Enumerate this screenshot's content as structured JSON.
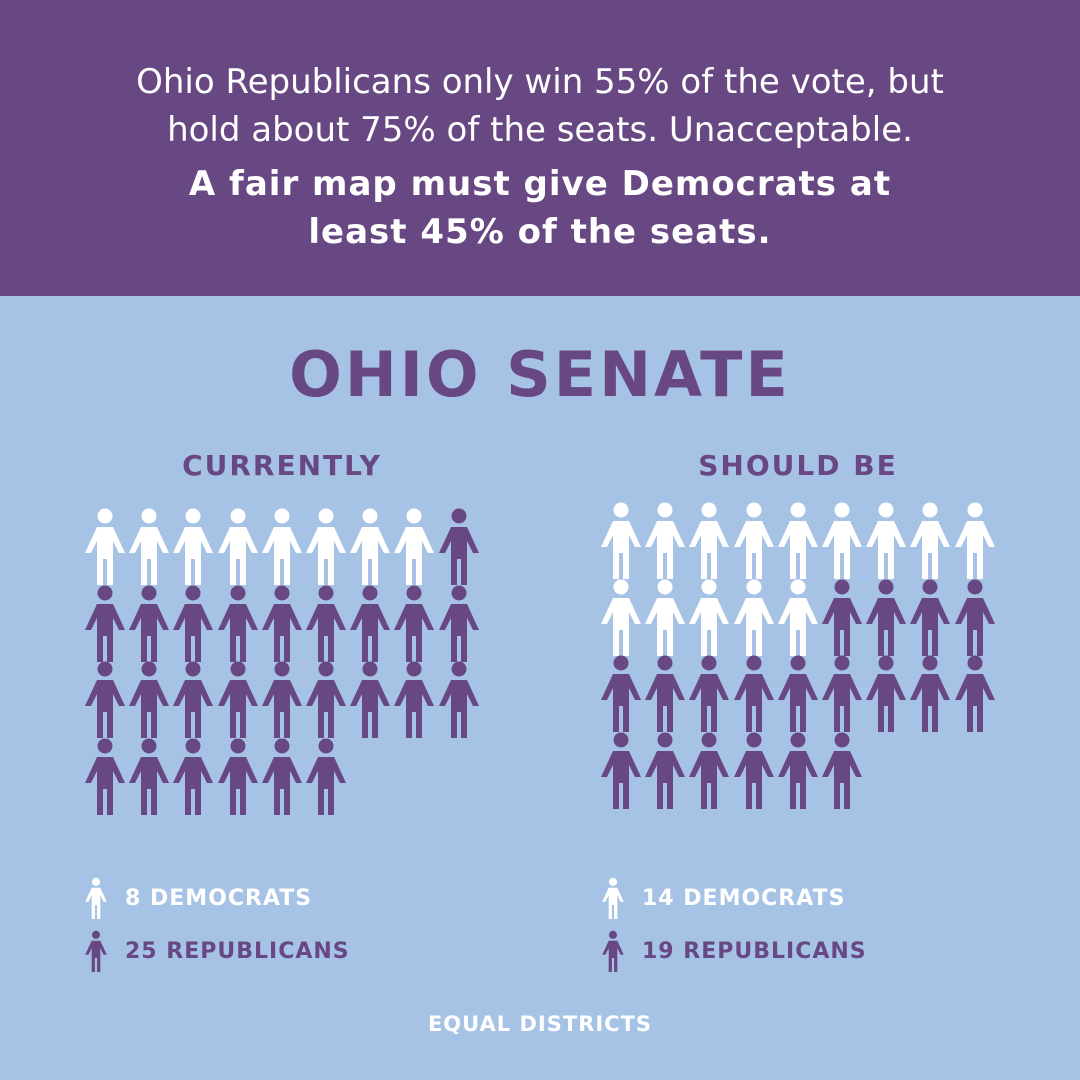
{
  "header": {
    "line1": "Ohio Republicans only win 55% of the vote, but",
    "line2": "hold about 75% of the seats. Unacceptable.",
    "line3": "A fair map must give Democrats at",
    "line4": "least 45% of the seats."
  },
  "title": "OHIO SENATE",
  "colors": {
    "banner": "#684882",
    "background": "#a6c3e6",
    "democrat": "#ffffff",
    "republican": "#684882"
  },
  "icons": {
    "democrat": "person-icon",
    "republican": "person-icon"
  },
  "chart_data": [
    {
      "type": "pictogram",
      "title": "CURRENTLY",
      "series": [
        {
          "name": "DEMOCRATS",
          "value": 8,
          "color": "#ffffff"
        },
        {
          "name": "REPUBLICANS",
          "value": 25,
          "color": "#684882"
        }
      ],
      "legend": [
        "8 DEMOCRATS",
        "25 REPUBLICANS"
      ]
    },
    {
      "type": "pictogram",
      "title": "SHOULD BE",
      "series": [
        {
          "name": "DEMOCRATS",
          "value": 14,
          "color": "#ffffff"
        },
        {
          "name": "REPUBLICANS",
          "value": 19,
          "color": "#684882"
        }
      ],
      "legend": [
        "14 DEMOCRATS",
        "19 REPUBLICANS"
      ]
    }
  ],
  "brand": "EQUAL DISTRICTS"
}
